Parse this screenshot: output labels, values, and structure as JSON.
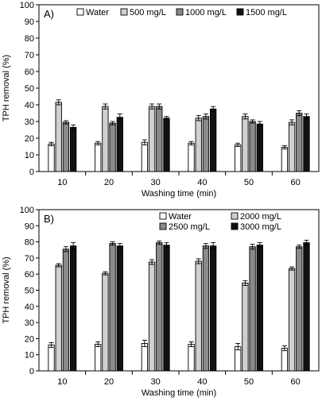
{
  "chart_data": [
    {
      "type": "bar",
      "panel_label": "A)",
      "categories": [
        "10",
        "20",
        "30",
        "40",
        "50",
        "60"
      ],
      "xlabel": "Washing time (min)",
      "ylabel": "TPH removal (%)",
      "ylim": [
        0,
        100
      ],
      "yticks": [
        0,
        10,
        20,
        30,
        40,
        50,
        60,
        70,
        80,
        90,
        100
      ],
      "legend_position": "top",
      "series": [
        {
          "name": "Water",
          "color": "#ffffff",
          "values": [
            16.5,
            17,
            17.5,
            17,
            16,
            14.5
          ],
          "errors": [
            1,
            1,
            1.5,
            1,
            1,
            1
          ]
        },
        {
          "name": "500 mg/L",
          "color": "#d0d0d0",
          "values": [
            41.5,
            39,
            39,
            32,
            33,
            29.5
          ],
          "errors": [
            1.5,
            1.5,
            1.5,
            1.5,
            1.5,
            1.5
          ]
        },
        {
          "name": "1000 mg/L",
          "color": "#8a8a8a",
          "values": [
            29.5,
            29,
            39,
            33,
            30,
            35
          ],
          "errors": [
            1,
            1,
            1.5,
            1.5,
            1,
            1.5
          ]
        },
        {
          "name": "1500 mg/L",
          "color": "#111111",
          "values": [
            26.5,
            32.5,
            32,
            37.5,
            28.5,
            33
          ],
          "errors": [
            1.5,
            2,
            1,
            1.5,
            1.5,
            1.5
          ]
        }
      ]
    },
    {
      "type": "bar",
      "panel_label": "B)",
      "categories": [
        "10",
        "20",
        "30",
        "40",
        "50",
        "60"
      ],
      "xlabel": "Washing time (min)",
      "ylabel": "TPH removal (%)",
      "ylim": [
        0,
        100
      ],
      "yticks": [
        0,
        10,
        20,
        30,
        40,
        50,
        60,
        70,
        80,
        90,
        100
      ],
      "legend_position": "top-right",
      "series": [
        {
          "name": "Water",
          "color": "#ffffff",
          "values": [
            16,
            16.5,
            17,
            16.5,
            15,
            14
          ],
          "errors": [
            1.5,
            1.5,
            2,
            1.5,
            2,
            1.5
          ]
        },
        {
          "name": "2000 mg/L",
          "color": "#d0d0d0",
          "values": [
            65.5,
            60.5,
            67.5,
            68,
            54.5,
            63.5
          ],
          "errors": [
            1,
            1,
            1.5,
            1.5,
            1.5,
            1
          ]
        },
        {
          "name": "2500 mg/L",
          "color": "#8a8a8a",
          "values": [
            75.5,
            79,
            79.5,
            77.5,
            77,
            77
          ],
          "errors": [
            1.5,
            1,
            1,
            1.5,
            1.5,
            1
          ]
        },
        {
          "name": "3000 mg/L",
          "color": "#111111",
          "values": [
            77.5,
            77.5,
            78,
            77.5,
            78,
            79.5
          ],
          "errors": [
            2,
            1.5,
            1.5,
            2,
            1.5,
            1.5
          ]
        }
      ]
    }
  ]
}
